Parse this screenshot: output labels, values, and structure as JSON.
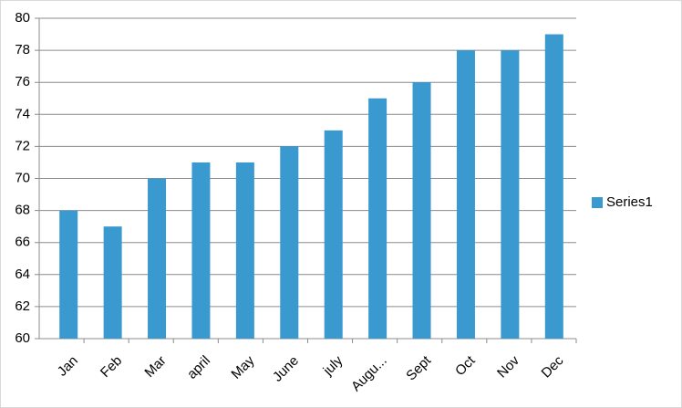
{
  "chart_data": {
    "type": "bar",
    "categories": [
      "Jan",
      "Feb",
      "Mar",
      "april",
      "May",
      "June",
      "july",
      "Augu...",
      "Sept",
      "Oct",
      "Nov",
      "Dec"
    ],
    "series": [
      {
        "name": "Series1",
        "color": "#3a99cf",
        "values": [
          68,
          67,
          70,
          71,
          71,
          72,
          73,
          75,
          76,
          78,
          78,
          79
        ]
      }
    ],
    "ylim": [
      60,
      80
    ],
    "yticks": [
      60,
      62,
      64,
      66,
      68,
      70,
      72,
      74,
      76,
      78,
      80
    ],
    "grid": true,
    "legend": "right"
  }
}
